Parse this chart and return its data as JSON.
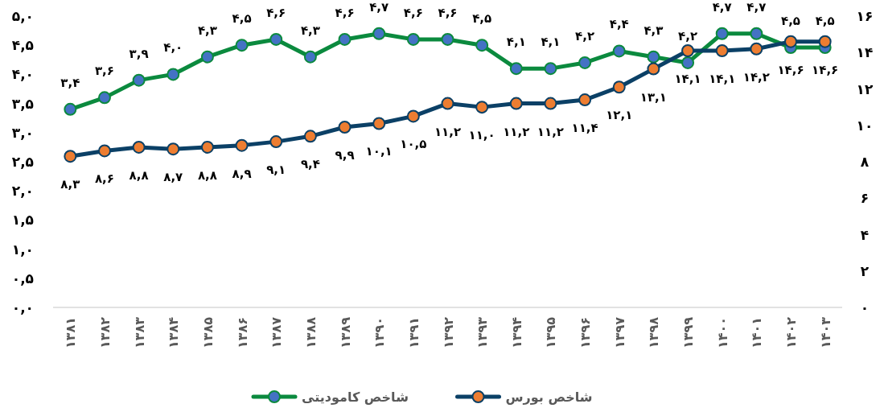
{
  "chart_data": {
    "type": "line",
    "marker": "circle",
    "legend": "bottom",
    "categories": [
      "۱۳۸۱",
      "۱۳۸۲",
      "۱۳۸۳",
      "۱۳۸۴",
      "۱۳۸۵",
      "۱۳۸۶",
      "۱۳۸۷",
      "۱۳۸۸",
      "۱۳۸۹",
      "۱۳۹۰",
      "۱۳۹۱",
      "۱۳۹۲",
      "۱۳۹۳",
      "۱۳۹۴",
      "۱۳۹۵",
      "۱۳۹۶",
      "۱۳۹۷",
      "۱۳۹۸",
      "۱۳۹۹",
      "۱۴۰۰",
      "۱۴۰۱",
      "۱۴۰۲",
      "۱۴۰۳"
    ],
    "ylim": [
      0,
      5
    ],
    "yticks": [
      {
        "value": 0,
        "label": "۰,۰"
      },
      {
        "value": 0.5,
        "label": "۰,۵"
      },
      {
        "value": 1,
        "label": "۱,۰"
      },
      {
        "value": 1.5,
        "label": "۱,۵"
      },
      {
        "value": 2,
        "label": "۲,۰"
      },
      {
        "value": 2.5,
        "label": "۲,۵"
      },
      {
        "value": 3,
        "label": "۳,۰"
      },
      {
        "value": 3.5,
        "label": "۳,۵"
      },
      {
        "value": 4,
        "label": "۴,۰"
      },
      {
        "value": 4.5,
        "label": "۴,۵"
      },
      {
        "value": 5,
        "label": "۵,۰"
      }
    ],
    "y2lim": [
      0,
      16
    ],
    "y2ticks": [
      {
        "value": 0,
        "label": "۰"
      },
      {
        "value": 2,
        "label": "۲"
      },
      {
        "value": 4,
        "label": "۴"
      },
      {
        "value": 6,
        "label": "۶"
      },
      {
        "value": 8,
        "label": "۸"
      },
      {
        "value": 10,
        "label": "۱۰"
      },
      {
        "value": 12,
        "label": "۱۲"
      },
      {
        "value": 14,
        "label": "۱۴"
      },
      {
        "value": 16,
        "label": "۱۶"
      }
    ],
    "series": [
      {
        "name": "شاخص کامودیتی",
        "color": "#0b8a3e",
        "values": [
          3.4,
          3.6,
          3.9,
          4.0,
          4.3,
          4.5,
          4.6,
          4.3,
          4.6,
          4.7,
          4.6,
          4.6,
          4.5,
          4.1,
          4.1,
          4.2,
          4.4,
          4.3,
          4.2,
          4.7,
          4.7,
          4.46,
          4.46
        ],
        "value_labels": [
          "۳,۴",
          "۳,۶",
          "۳,۹",
          "۴,۰",
          "۴,۳",
          "۴,۵",
          "۴,۶",
          "۴,۳",
          "۴,۶",
          "۴,۷",
          "۴,۶",
          "۴,۶",
          "۴,۵",
          "۴,۱",
          "۴,۱",
          "۴,۲",
          "۴,۴",
          "۴,۳",
          "۴,۲",
          "۴,۷",
          "۴,۷",
          "۴,۵",
          "۴,۵"
        ]
      },
      {
        "name": "شاخص بورس",
        "color": "#0b4066",
        "axis": "y2",
        "values": [
          8.3,
          8.6,
          8.8,
          8.7,
          8.8,
          8.9,
          9.1,
          9.4,
          9.9,
          10.1,
          10.5,
          11.2,
          11.0,
          11.2,
          11.2,
          11.4,
          12.1,
          13.1,
          14.1,
          14.1,
          14.2,
          14.6,
          14.6
        ],
        "value_labels": [
          "۸,۳",
          "۸,۶",
          "۸,۸",
          "۸,۷",
          "۸,۸",
          "۸,۹",
          "۹,۱",
          "۹,۴",
          "۹,۹",
          "۱۰,۱",
          "۱۰,۵",
          "۱۱,۲",
          "۱۱,۰",
          "۱۱,۲",
          "۱۱,۲",
          "۱۱,۴",
          "۱۲,۱",
          "۱۳,۱",
          "۱۴,۱",
          "۱۴,۱",
          "۱۴,۲",
          "۱۴,۶",
          "۱۴,۶"
        ]
      }
    ]
  }
}
